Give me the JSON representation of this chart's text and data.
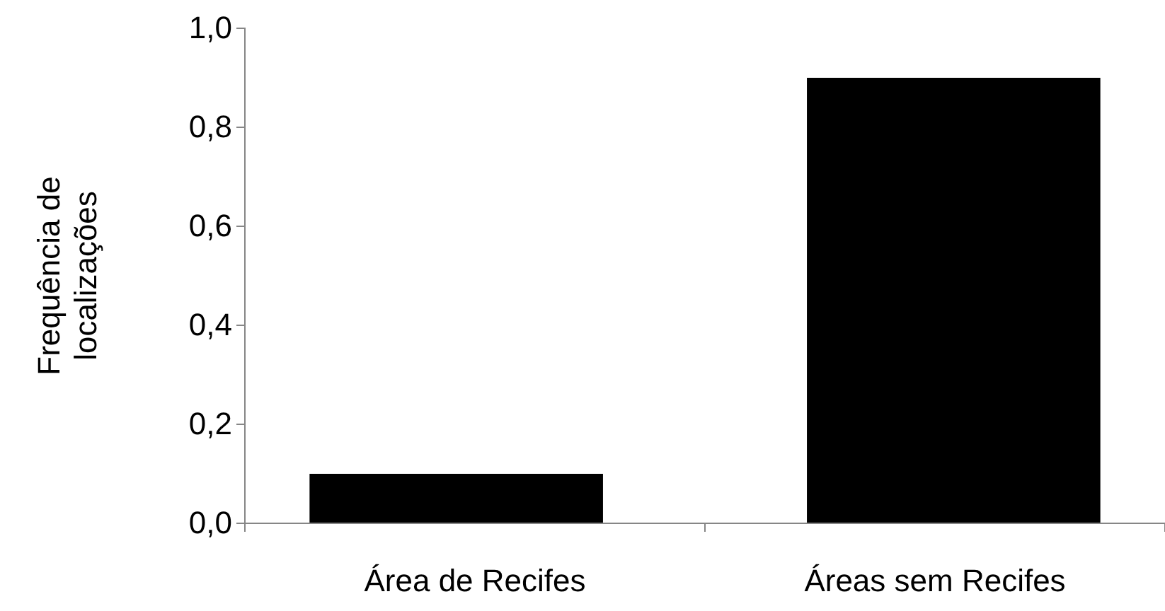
{
  "chart_data": {
    "type": "bar",
    "ylabel": "Frequência de\nlocalizações",
    "categories": [
      "Área de Recifes",
      "Áreas sem Recifes"
    ],
    "values": [
      0.1,
      0.9
    ],
    "color": "#000000",
    "ylim": [
      0,
      1
    ],
    "yticks": [
      {
        "value": 0,
        "label": "0,0"
      },
      {
        "value": 0.2,
        "label": "0,2"
      },
      {
        "value": 0.4,
        "label": "0,4"
      },
      {
        "value": 0.6,
        "label": "0,6"
      },
      {
        "value": 0.8,
        "label": "0,8"
      },
      {
        "value": 1,
        "label": "1,0"
      }
    ],
    "grid": false
  }
}
